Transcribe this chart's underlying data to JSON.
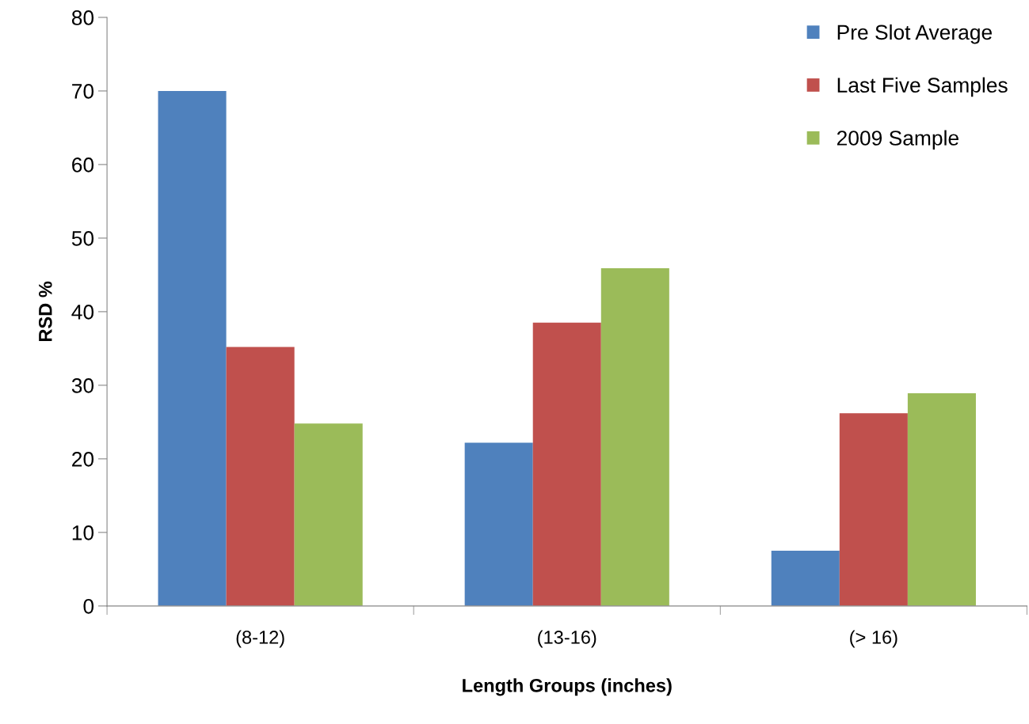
{
  "chart_data": {
    "type": "bar",
    "xlabel": "Length Groups (inches)",
    "ylabel": "RSD %",
    "categories": [
      "(8-12)",
      "(13-16)",
      "(> 16)"
    ],
    "series": [
      {
        "name": "Pre Slot Average",
        "color": "#4f81bd",
        "values": [
          70,
          22.2,
          7.5
        ]
      },
      {
        "name": "Last Five Samples",
        "color": "#c0504d",
        "values": [
          35.2,
          38.5,
          26.2
        ]
      },
      {
        "name": "2009 Sample",
        "color": "#9bbb59",
        "values": [
          24.8,
          45.9,
          28.9
        ]
      }
    ],
    "ylim": [
      0,
      80
    ],
    "yticks": [
      0,
      10,
      20,
      30,
      40,
      50,
      60,
      70,
      80
    ],
    "grid": false,
    "legend": "top right"
  }
}
